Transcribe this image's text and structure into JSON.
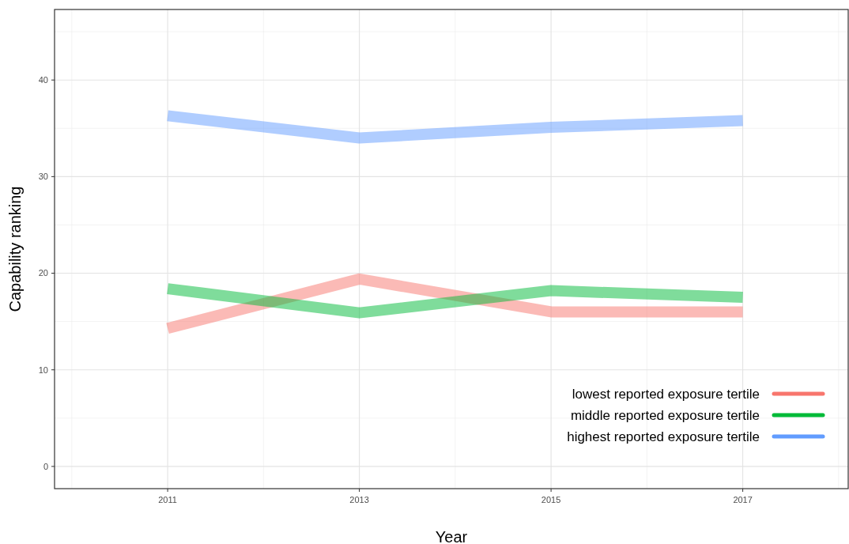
{
  "chart_data": {
    "type": "line",
    "xlabel": "Year",
    "ylabel": "Capability ranking",
    "x": [
      2011,
      2013,
      2015,
      2017
    ],
    "xlim": [
      2009.82,
      2018.1
    ],
    "xticks": [
      2011,
      2013,
      2015,
      2017
    ],
    "ylim": [
      -2.3,
      47.3
    ],
    "yticks": [
      0,
      10,
      20,
      30,
      40
    ],
    "grid": true,
    "legend": "bottom right",
    "series": [
      {
        "name": "lowest reported exposure tertile",
        "color": "#f8766d",
        "values": [
          14.3,
          19.4,
          16.0,
          16.0
        ]
      },
      {
        "name": "middle reported exposure tertile",
        "color": "#00ba38",
        "values": [
          18.4,
          15.9,
          18.2,
          17.5
        ]
      },
      {
        "name": "highest reported exposure tertile",
        "color": "#619cff",
        "values": [
          36.3,
          34.0,
          35.1,
          35.8
        ]
      }
    ]
  }
}
